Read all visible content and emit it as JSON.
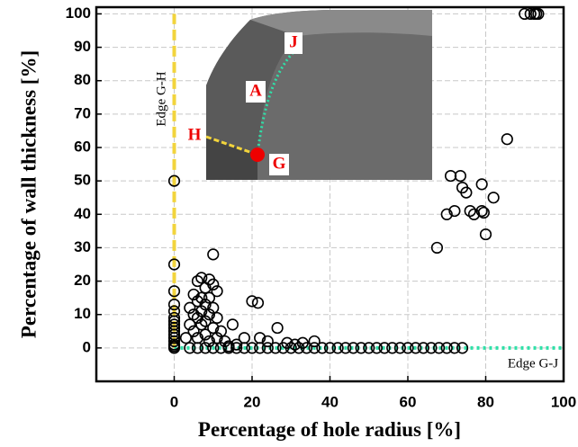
{
  "chart_data": {
    "type": "scatter",
    "xlabel": "Percentage of hole radius [%]",
    "ylabel": "Percentage of wall thickness [%]",
    "xlim": [
      -20,
      100
    ],
    "xticks": [
      0,
      20,
      40,
      60,
      80,
      100
    ],
    "ylim": [
      -10,
      102
    ],
    "yticks": [
      0,
      10,
      20,
      30,
      40,
      50,
      60,
      70,
      80,
      90,
      100
    ],
    "grid": true,
    "series": [
      {
        "color": "#000000",
        "x": [
          0,
          0,
          0,
          0,
          0,
          0,
          0,
          0,
          0,
          0,
          0,
          0,
          0,
          0,
          0,
          0,
          90,
          91.5,
          92.5,
          93,
          93.5,
          85.5,
          71,
          73.5,
          74,
          75,
          82,
          72,
          70,
          76,
          77,
          79,
          79.5,
          79,
          80,
          67.5,
          10,
          7,
          9,
          6,
          10,
          8,
          11,
          5,
          7,
          9,
          6,
          8,
          4,
          10,
          7,
          5,
          9,
          11,
          6,
          8,
          4,
          7,
          10,
          12,
          5,
          8,
          3,
          6,
          11,
          9,
          13,
          15,
          20,
          21.5,
          26.5,
          22,
          18,
          24,
          29,
          31,
          33,
          36,
          16,
          14,
          4,
          6,
          8,
          10,
          12,
          14,
          16,
          18,
          20,
          22,
          24,
          26,
          28,
          30,
          32,
          34,
          36,
          38,
          40,
          42,
          44,
          46,
          48,
          50,
          52,
          54,
          56,
          58,
          60,
          62,
          64,
          66,
          68,
          70,
          72,
          74
        ],
        "y": [
          50,
          25,
          17,
          13,
          11,
          9,
          8,
          7,
          6,
          5,
          4,
          3,
          2,
          1,
          0.5,
          0,
          100,
          100,
          100,
          100,
          100,
          62.5,
          51.5,
          51.5,
          48,
          46.5,
          45,
          41,
          40,
          41,
          40,
          41,
          40.5,
          49,
          34,
          30,
          28,
          21,
          20.5,
          20,
          19,
          18,
          17,
          16,
          15,
          15,
          14,
          13,
          12,
          12,
          11,
          10,
          10,
          9,
          9,
          8,
          7,
          7,
          6,
          5,
          5,
          4,
          3,
          3,
          3,
          2,
          2,
          7,
          14,
          13.5,
          6,
          3,
          3,
          2,
          1.5,
          1,
          1.5,
          2,
          1,
          0.5,
          0,
          0,
          0,
          0,
          0,
          0,
          0,
          0,
          0,
          0,
          0,
          0,
          0,
          0,
          0,
          0,
          0,
          0,
          0,
          0,
          0,
          0,
          0,
          0,
          0,
          0,
          0,
          0,
          0,
          0,
          0,
          0,
          0,
          0,
          0,
          0
        ]
      }
    ],
    "lines": [
      {
        "name": "Edge G-H",
        "color": "#f2d43c",
        "x": [
          0,
          0
        ],
        "y": [
          0,
          100
        ]
      },
      {
        "name": "Edge G-J",
        "color": "#2fe0a8",
        "x": [
          0,
          100
        ],
        "y": [
          0,
          0
        ]
      }
    ],
    "inset_labels": [
      "J",
      "A",
      "H",
      "G"
    ]
  }
}
